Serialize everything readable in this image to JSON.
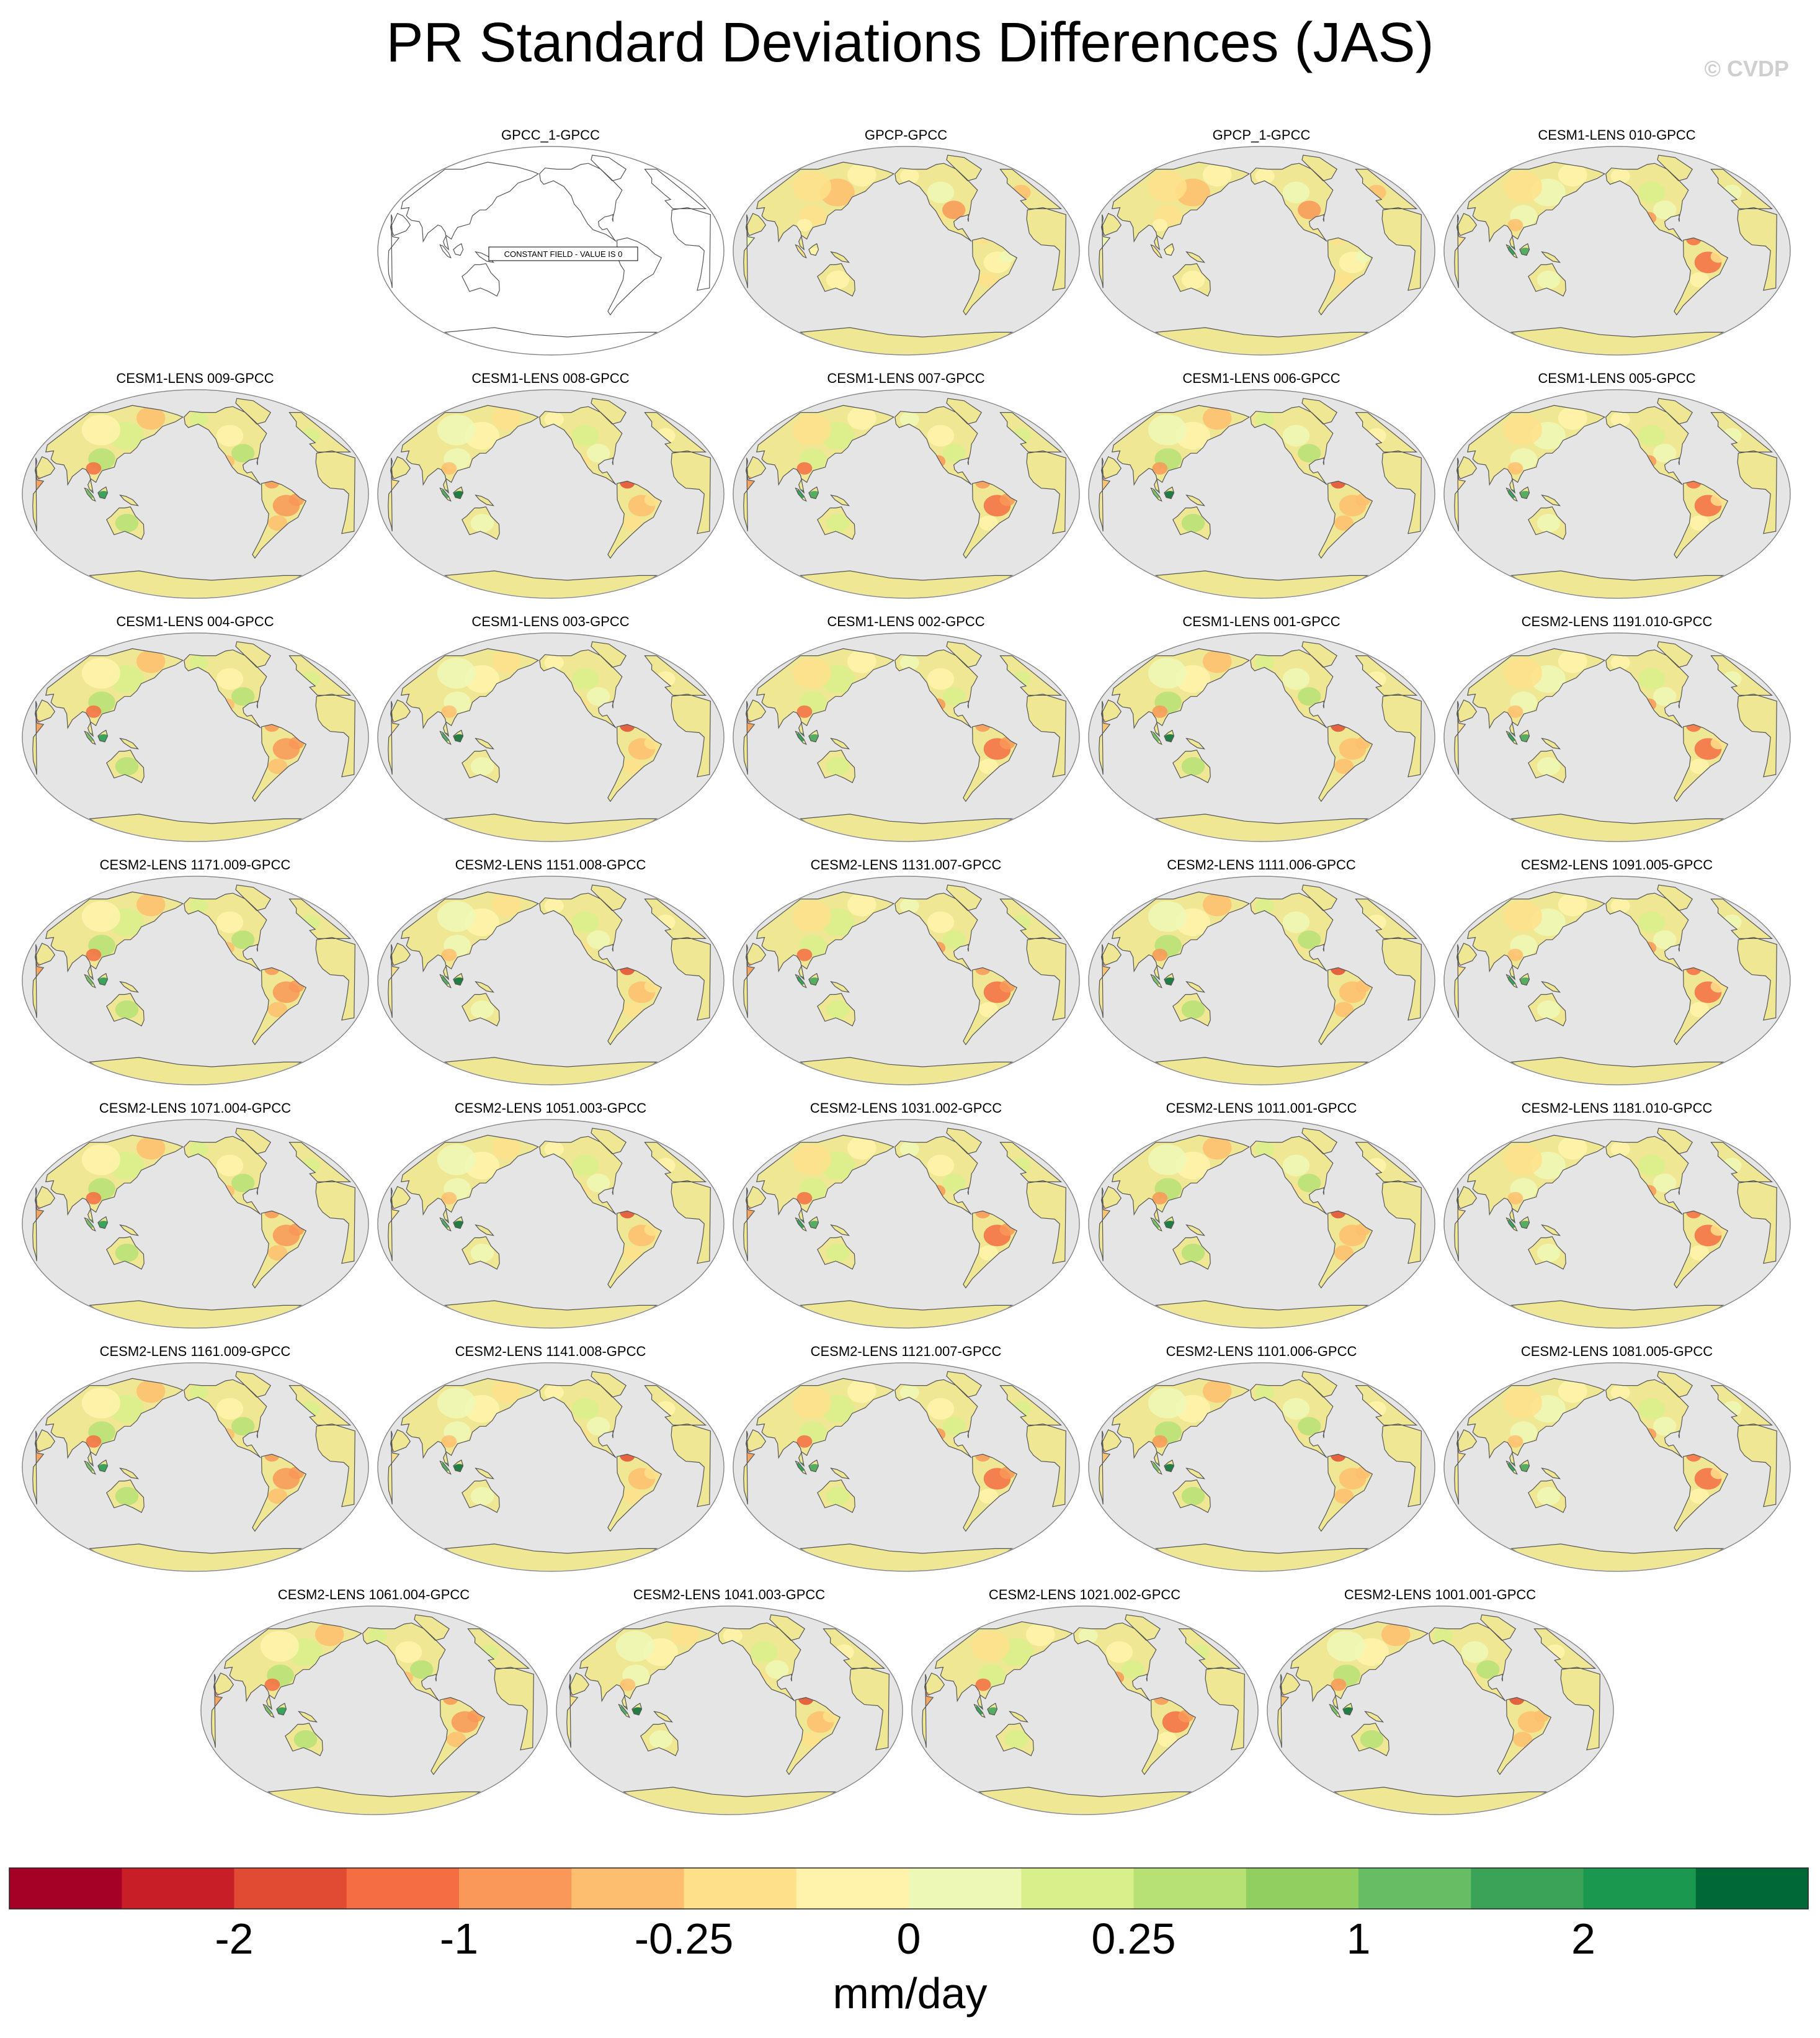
{
  "title": "PR Standard Deviations Differences (JAS)",
  "credit": "© CVDP",
  "units": "mm/day",
  "colors": {
    "land_base": "#f0e794",
    "ocean": "#e5e5e5",
    "coast": "#555555",
    "outline": "#888888"
  },
  "chart_data": {
    "type": "heatmap",
    "title": "PR Standard Deviations Differences (JAS)",
    "colorbar": {
      "label": "mm/day",
      "tick_labels": [
        "-2",
        "-1",
        "-0.25",
        "0",
        "0.25",
        "1",
        "2"
      ],
      "colors": [
        "#a50026",
        "#c81e27",
        "#e24b33",
        "#f46d43",
        "#f99858",
        "#fdbe6f",
        "#fee08b",
        "#fff3ac",
        "#eef8b6",
        "#d9ef8b",
        "#b7e075",
        "#91cf60",
        "#66bd63",
        "#3aa357",
        "#1a9850",
        "#006837"
      ]
    },
    "panels": [
      {
        "title": "GPCC_1-GPCC",
        "constant": true,
        "note": "CONSTANT FIELD - VALUE IS 0"
      },
      {
        "title": "GPCP-GPCC"
      },
      {
        "title": "GPCP_1-GPCC"
      },
      {
        "title": "CESM1-LENS 010-GPCC"
      },
      {
        "title": "CESM1-LENS 009-GPCC"
      },
      {
        "title": "CESM1-LENS 008-GPCC"
      },
      {
        "title": "CESM1-LENS 007-GPCC"
      },
      {
        "title": "CESM1-LENS 006-GPCC"
      },
      {
        "title": "CESM1-LENS 005-GPCC"
      },
      {
        "title": "CESM1-LENS 004-GPCC"
      },
      {
        "title": "CESM1-LENS 003-GPCC"
      },
      {
        "title": "CESM1-LENS 002-GPCC"
      },
      {
        "title": "CESM1-LENS 001-GPCC"
      },
      {
        "title": "CESM2-LENS 1191.010-GPCC"
      },
      {
        "title": "CESM2-LENS 1171.009-GPCC"
      },
      {
        "title": "CESM2-LENS 1151.008-GPCC"
      },
      {
        "title": "CESM2-LENS 1131.007-GPCC"
      },
      {
        "title": "CESM2-LENS 1111.006-GPCC"
      },
      {
        "title": "CESM2-LENS 1091.005-GPCC"
      },
      {
        "title": "CESM2-LENS 1071.004-GPCC"
      },
      {
        "title": "CESM2-LENS 1051.003-GPCC"
      },
      {
        "title": "CESM2-LENS 1031.002-GPCC"
      },
      {
        "title": "CESM2-LENS 1011.001-GPCC"
      },
      {
        "title": "CESM2-LENS 1181.010-GPCC"
      },
      {
        "title": "CESM2-LENS 1161.009-GPCC"
      },
      {
        "title": "CESM2-LENS 1141.008-GPCC"
      },
      {
        "title": "CESM2-LENS 1121.007-GPCC"
      },
      {
        "title": "CESM2-LENS 1101.006-GPCC"
      },
      {
        "title": "CESM2-LENS 1081.005-GPCC"
      },
      {
        "title": "CESM2-LENS 1061.004-GPCC"
      },
      {
        "title": "CESM2-LENS 1041.003-GPCC"
      },
      {
        "title": "CESM2-LENS 1021.002-GPCC"
      },
      {
        "title": "CESM2-LENS 1001.001-GPCC"
      }
    ]
  }
}
